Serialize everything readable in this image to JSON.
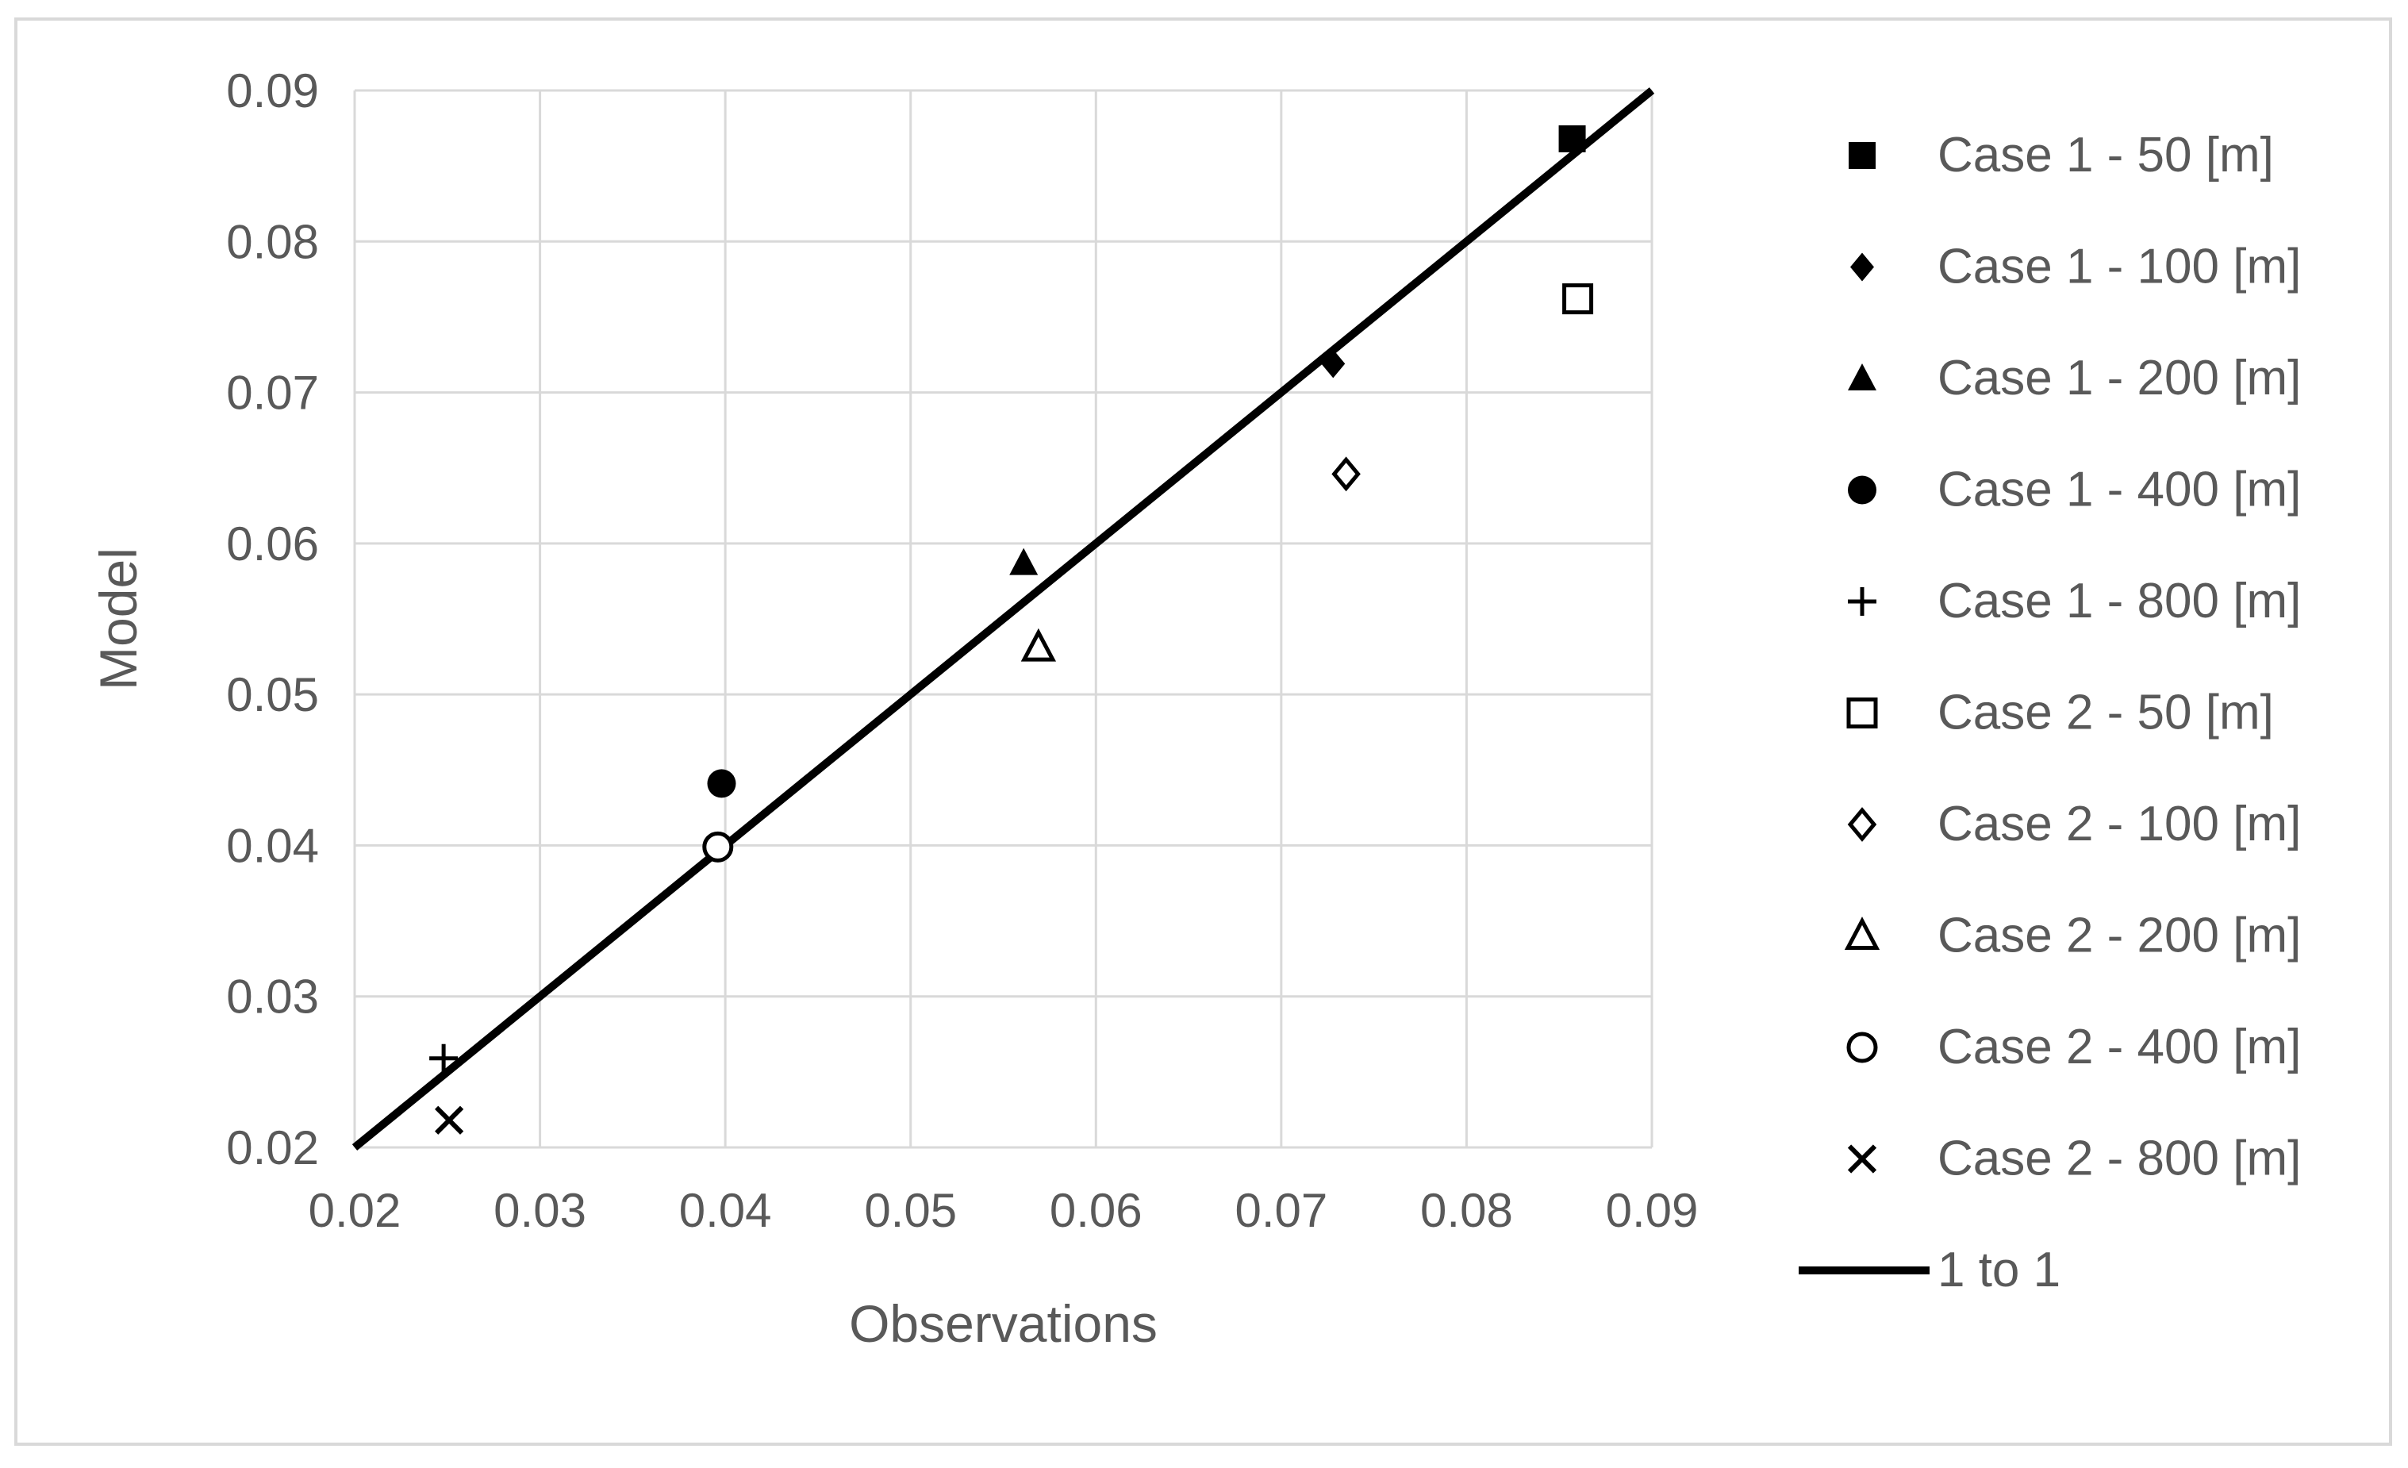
{
  "chart_data": {
    "type": "scatter",
    "title": "",
    "xlabel": "Observations",
    "ylabel": "Model",
    "xlim": [
      0.02,
      0.09
    ],
    "ylim": [
      0.02,
      0.09
    ],
    "x_ticks": [
      "0.02",
      "0.03",
      "0.04",
      "0.05",
      "0.06",
      "0.07",
      "0.08",
      "0.09"
    ],
    "y_ticks": [
      "0.02",
      "0.03",
      "0.04",
      "0.05",
      "0.06",
      "0.07",
      "0.08",
      "0.09"
    ],
    "grid": true,
    "legend_position": "right",
    "colors": {
      "marker": "#000000",
      "grid": "#d9d9d9",
      "text": "#595959"
    },
    "series": [
      {
        "name": "Case 1 - 50 [m]",
        "marker": "square-filled",
        "x": 0.0857,
        "y": 0.0868
      },
      {
        "name": "Case 1 - 100 [m]",
        "marker": "diamond-filled",
        "x": 0.0728,
        "y": 0.0719
      },
      {
        "name": "Case 1 - 200 [m]",
        "marker": "triangle-filled",
        "x": 0.0561,
        "y": 0.0587
      },
      {
        "name": "Case 1 - 400 [m]",
        "marker": "circle-filled",
        "x": 0.0398,
        "y": 0.0441
      },
      {
        "name": "Case 1 - 800 [m]",
        "marker": "plus",
        "x": 0.0248,
        "y": 0.0259
      },
      {
        "name": "Case 2 - 50 [m]",
        "marker": "square-open",
        "x": 0.086,
        "y": 0.0762
      },
      {
        "name": "Case 2 - 100 [m]",
        "marker": "diamond-open",
        "x": 0.0735,
        "y": 0.0646
      },
      {
        "name": "Case 2 - 200 [m]",
        "marker": "triangle-open",
        "x": 0.0569,
        "y": 0.0531
      },
      {
        "name": "Case 2 - 400 [m]",
        "marker": "circle-open",
        "x": 0.0396,
        "y": 0.0399
      },
      {
        "name": "Case 2 - 800 [m]",
        "marker": "x",
        "x": 0.0251,
        "y": 0.0218
      }
    ],
    "reference_line": {
      "name": "1 to 1",
      "x": [
        0.02,
        0.09
      ],
      "y": [
        0.02,
        0.09
      ]
    }
  }
}
